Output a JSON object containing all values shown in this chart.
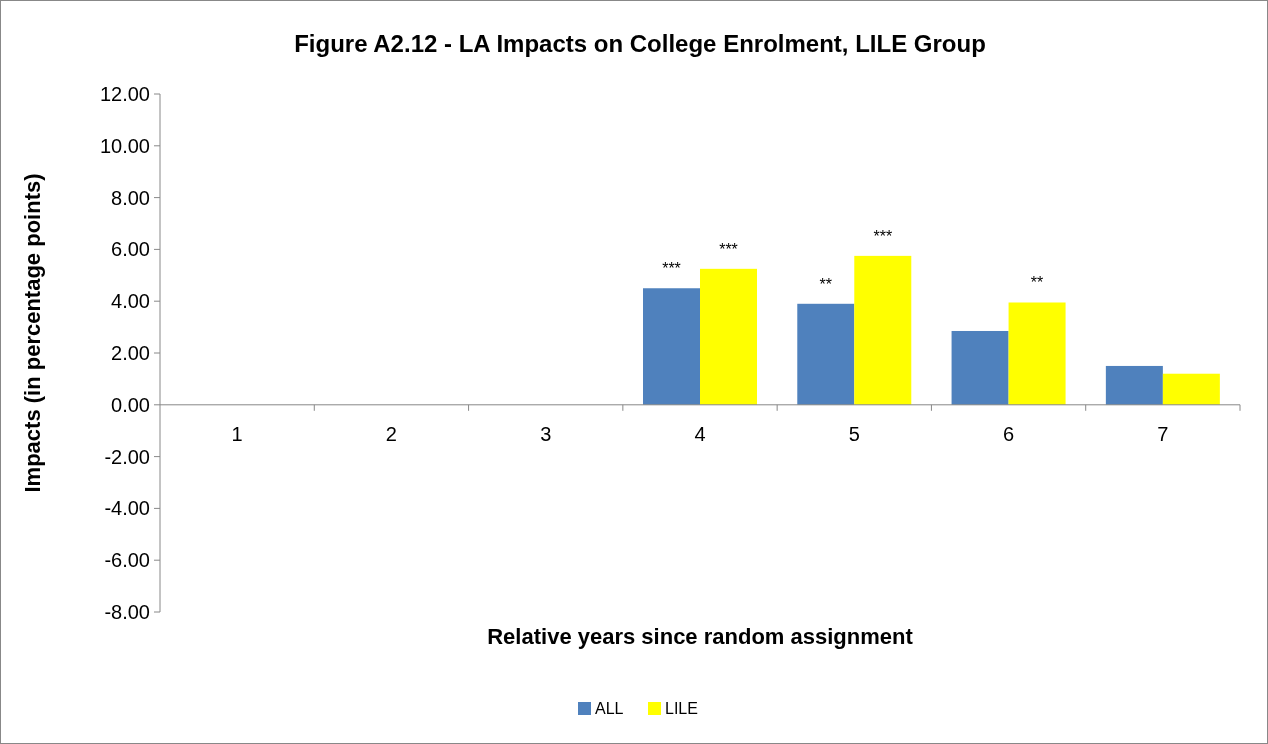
{
  "chart_data": {
    "type": "bar",
    "title": "Figure A2.12 - LA Impacts on College Enrolment, LILE Group",
    "xlabel": "Relative years since random assignment",
    "ylabel": "Impacts (in percentage points)",
    "categories": [
      "1",
      "2",
      "3",
      "4",
      "5",
      "6",
      "7"
    ],
    "series": [
      {
        "name": "ALL",
        "color": "#4f81bd",
        "values": [
          null,
          null,
          null,
          4.5,
          3.9,
          2.85,
          1.5
        ]
      },
      {
        "name": "LILE",
        "color": "#ffff00",
        "values": [
          null,
          null,
          null,
          5.25,
          5.75,
          3.95,
          1.2
        ]
      }
    ],
    "ylim": [
      -8,
      12
    ],
    "yticks": [
      {
        "value": -8,
        "label": "-8.00"
      },
      {
        "value": -6,
        "label": "-6.00"
      },
      {
        "value": -4,
        "label": "-4.00"
      },
      {
        "value": -2,
        "label": "-2.00"
      },
      {
        "value": 0,
        "label": "0.00"
      },
      {
        "value": 2,
        "label": "2.00"
      },
      {
        "value": 4,
        "label": "4.00"
      },
      {
        "value": 6,
        "label": "6.00"
      },
      {
        "value": 8,
        "label": "8.00"
      },
      {
        "value": 10,
        "label": "10.00"
      },
      {
        "value": 12,
        "label": "12.00"
      }
    ],
    "annotations": [
      {
        "text": "***",
        "x": "4",
        "y": 4.5
      },
      {
        "text": "***",
        "x": "4",
        "y": 5.25
      },
      {
        "text": "**",
        "x": "5",
        "y": 3.9
      },
      {
        "text": "***",
        "x": "5",
        "y": 5.75
      },
      {
        "text": "**",
        "x": "6",
        "y": 3.95
      }
    ],
    "grid": false,
    "legend": "bottom"
  }
}
